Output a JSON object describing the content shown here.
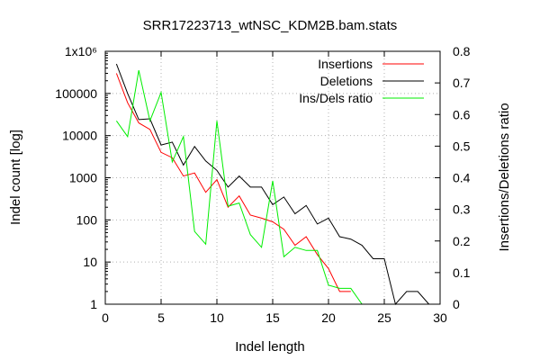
{
  "chart_data": {
    "type": "line",
    "title": "SRR17223713_wtNSC_KDM2B.bam.stats",
    "xlabel": "Indel length",
    "ylabel": "Indel count [log]",
    "y2label": "Insertions/Deletions ratio",
    "xlim": [
      0,
      30
    ],
    "ylim": [
      1,
      1000000
    ],
    "y2lim": [
      0,
      0.8
    ],
    "yscale": "log",
    "grid": true,
    "legend_position": "top-right",
    "x_ticks": [
      "0",
      "5",
      "10",
      "15",
      "20",
      "25",
      "30"
    ],
    "y_ticks": [
      "1",
      "10",
      "100",
      "1000",
      "10000",
      "100000",
      "1x10⁶"
    ],
    "y2_ticks": [
      "0",
      "0.1",
      "0.2",
      "0.3",
      "0.4",
      "0.5",
      "0.6",
      "0.7",
      "0.8"
    ],
    "series": [
      {
        "name": "Insertions",
        "axis": "left",
        "color": "#ff0000",
        "x": [
          1,
          2,
          3,
          4,
          5,
          6,
          7,
          8,
          9,
          10,
          11,
          12,
          13,
          14,
          15,
          16,
          17,
          18,
          19,
          20,
          21,
          22
        ],
        "y": [
          300000,
          60000,
          20000,
          14000,
          4000,
          3000,
          1100,
          1300,
          450,
          900,
          200,
          370,
          130,
          110,
          90,
          60,
          25,
          40,
          15,
          7,
          2,
          2
        ]
      },
      {
        "name": "Deletions",
        "axis": "left",
        "color": "#000000",
        "x": [
          1,
          2,
          3,
          4,
          5,
          6,
          7,
          8,
          9,
          10,
          11,
          12,
          13,
          14,
          15,
          16,
          17,
          18,
          19,
          20,
          21,
          22,
          23,
          24,
          25,
          26,
          27,
          28,
          29
        ],
        "y": [
          500000,
          100000,
          24000,
          25000,
          6000,
          7000,
          2000,
          5500,
          2500,
          1500,
          600,
          1100,
          600,
          600,
          230,
          350,
          140,
          220,
          80,
          110,
          40,
          35,
          25,
          12,
          12,
          1,
          2,
          2,
          1
        ]
      },
      {
        "name": "Ins/Dels ratio",
        "axis": "right",
        "color": "#00ee00",
        "x": [
          1,
          2,
          3,
          4,
          5,
          6,
          7,
          8,
          9,
          10,
          11,
          12,
          13,
          14,
          15,
          16,
          17,
          18,
          19,
          20,
          21,
          22,
          23
        ],
        "y": [
          0.58,
          0.53,
          0.74,
          0.58,
          0.67,
          0.45,
          0.53,
          0.23,
          0.19,
          0.58,
          0.31,
          0.32,
          0.22,
          0.18,
          0.39,
          0.15,
          0.18,
          0.17,
          0.17,
          0.06,
          0.05,
          0.05,
          0.0
        ]
      }
    ]
  }
}
